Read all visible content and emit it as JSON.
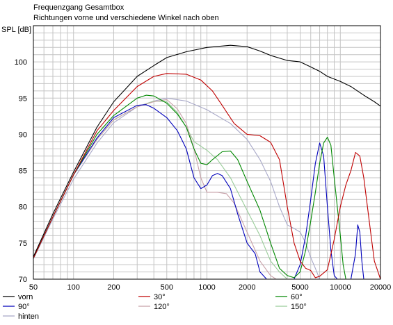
{
  "chart_data": {
    "type": "line",
    "title": "Frequenzgang Gesamtbox",
    "subtitle": "Richtungen vorne und verschiedene Winkel nach oben",
    "xlabel": "",
    "ylabel": "SPL [dB]",
    "x_scale": "log",
    "xlim": [
      50,
      20000
    ],
    "ylim": [
      70,
      105
    ],
    "grid": true,
    "x_ticks": [
      50,
      100,
      200,
      500,
      1000,
      2000,
      5000,
      10000,
      20000
    ],
    "x_tick_labels": [
      "50",
      "100",
      "200",
      "500",
      "1000",
      "2000",
      "5000",
      "10000",
      "20000"
    ],
    "y_ticks": [
      70,
      75,
      80,
      85,
      90,
      95,
      100
    ],
    "y_tick_labels": [
      "70",
      "75",
      "80",
      "85",
      "90",
      "95",
      "100"
    ],
    "legend_position": "bottom",
    "series": [
      {
        "name": "vorn",
        "color": "#000000",
        "points": [
          [
            50,
            73.1
          ],
          [
            70,
            79
          ],
          [
            100,
            84.8
          ],
          [
            150,
            91
          ],
          [
            200,
            94.5
          ],
          [
            300,
            98
          ],
          [
            400,
            99.5
          ],
          [
            500,
            100.6
          ],
          [
            700,
            101.4
          ],
          [
            1000,
            102
          ],
          [
            1500,
            102.3
          ],
          [
            2000,
            102.1
          ],
          [
            2500,
            101.5
          ],
          [
            3000,
            100.9
          ],
          [
            4000,
            100.2
          ],
          [
            5000,
            100
          ],
          [
            6000,
            99.3
          ],
          [
            7000,
            98.7
          ],
          [
            8000,
            98
          ],
          [
            10000,
            97.3
          ],
          [
            12000,
            96.6
          ],
          [
            15000,
            95.4
          ],
          [
            18000,
            94.5
          ],
          [
            20000,
            93.9
          ]
        ]
      },
      {
        "name": "30°",
        "color": "#c00000",
        "points": [
          [
            50,
            72.9
          ],
          [
            70,
            78.6
          ],
          [
            100,
            84.4
          ],
          [
            150,
            90.5
          ],
          [
            200,
            93.3
          ],
          [
            300,
            96.6
          ],
          [
            400,
            98
          ],
          [
            500,
            98.4
          ],
          [
            700,
            98.3
          ],
          [
            900,
            97.5
          ],
          [
            1100,
            96
          ],
          [
            1300,
            94
          ],
          [
            1600,
            91.5
          ],
          [
            2000,
            90
          ],
          [
            2500,
            89.8
          ],
          [
            3000,
            88.9
          ],
          [
            3500,
            86.5
          ],
          [
            4000,
            80
          ],
          [
            4500,
            75
          ],
          [
            5000,
            72.5
          ],
          [
            5500,
            71.5
          ],
          [
            6000,
            71.2
          ],
          [
            6500,
            70.2
          ],
          [
            7000,
            70.4
          ],
          [
            8000,
            71.3
          ],
          [
            9000,
            75.5
          ],
          [
            10000,
            80
          ],
          [
            11000,
            83
          ],
          [
            12000,
            85
          ],
          [
            13000,
            87.5
          ],
          [
            14000,
            87
          ],
          [
            15000,
            84
          ],
          [
            17000,
            76
          ],
          [
            18000,
            72.5
          ],
          [
            20000,
            70
          ]
        ]
      },
      {
        "name": "60°",
        "color": "#008800",
        "points": [
          [
            50,
            72.9
          ],
          [
            70,
            78.6
          ],
          [
            100,
            84.4
          ],
          [
            150,
            90
          ],
          [
            200,
            92.6
          ],
          [
            300,
            95
          ],
          [
            350,
            95.4
          ],
          [
            400,
            95.3
          ],
          [
            500,
            94.3
          ],
          [
            600,
            92.8
          ],
          [
            700,
            91
          ],
          [
            800,
            88
          ],
          [
            900,
            86
          ],
          [
            1000,
            85.8
          ],
          [
            1100,
            86.5
          ],
          [
            1300,
            87.6
          ],
          [
            1500,
            87.7
          ],
          [
            1700,
            86.5
          ],
          [
            2000,
            83.5
          ],
          [
            2500,
            79.5
          ],
          [
            3000,
            75
          ],
          [
            3500,
            71.5
          ],
          [
            4000,
            70.5
          ],
          [
            4500,
            70.2
          ],
          [
            5000,
            71
          ],
          [
            5500,
            74
          ],
          [
            6000,
            78
          ],
          [
            6500,
            82
          ],
          [
            7000,
            86
          ],
          [
            7500,
            88.8
          ],
          [
            8000,
            89.6
          ],
          [
            8500,
            88.5
          ],
          [
            9000,
            84
          ],
          [
            10000,
            76
          ],
          [
            10500,
            72
          ],
          [
            11000,
            70
          ]
        ]
      },
      {
        "name": "90°",
        "color": "#0000bb",
        "points": [
          [
            50,
            72.9
          ],
          [
            70,
            78.6
          ],
          [
            100,
            84.4
          ],
          [
            150,
            89.5
          ],
          [
            200,
            92.3
          ],
          [
            300,
            94
          ],
          [
            350,
            94.1
          ],
          [
            400,
            93.6
          ],
          [
            500,
            92.3
          ],
          [
            600,
            90.5
          ],
          [
            700,
            88
          ],
          [
            800,
            84
          ],
          [
            900,
            82.5
          ],
          [
            1000,
            83
          ],
          [
            1100,
            84.3
          ],
          [
            1200,
            84.6
          ],
          [
            1300,
            84.3
          ],
          [
            1500,
            82.5
          ],
          [
            1700,
            79
          ],
          [
            2000,
            75
          ],
          [
            2300,
            73.5
          ],
          [
            2500,
            71
          ],
          [
            2800,
            70
          ],
          [
            4500,
            70
          ],
          [
            5000,
            72
          ],
          [
            5500,
            76
          ],
          [
            6000,
            81
          ],
          [
            6500,
            86
          ],
          [
            7000,
            88.8
          ],
          [
            7500,
            87
          ],
          [
            8000,
            80
          ],
          [
            8500,
            74
          ],
          [
            9000,
            70.5
          ],
          [
            9500,
            70
          ],
          [
            12000,
            70
          ],
          [
            13000,
            73.5
          ],
          [
            13500,
            77.5
          ],
          [
            14000,
            76.5
          ],
          [
            14500,
            72.5
          ],
          [
            15000,
            70
          ]
        ]
      },
      {
        "name": "120°",
        "color": "#c8a0a8",
        "points": [
          [
            50,
            72.9
          ],
          [
            70,
            78.6
          ],
          [
            100,
            84.4
          ],
          [
            150,
            89.3
          ],
          [
            200,
            92
          ],
          [
            300,
            93.8
          ],
          [
            400,
            94.5
          ],
          [
            500,
            94.8
          ],
          [
            600,
            93.5
          ],
          [
            700,
            91.5
          ],
          [
            800,
            88
          ],
          [
            900,
            84
          ],
          [
            1000,
            82
          ],
          [
            1200,
            82
          ],
          [
            1400,
            81.8
          ],
          [
            1600,
            80.5
          ],
          [
            2000,
            76.5
          ],
          [
            2500,
            72.5
          ],
          [
            3000,
            70.5
          ],
          [
            3300,
            70
          ]
        ]
      },
      {
        "name": "150°",
        "color": "#99cc99",
        "points": [
          [
            50,
            72.9
          ],
          [
            70,
            78.6
          ],
          [
            100,
            84.4
          ],
          [
            150,
            89.3
          ],
          [
            200,
            92
          ],
          [
            300,
            93.8
          ],
          [
            400,
            94.6
          ],
          [
            500,
            94.5
          ],
          [
            600,
            93
          ],
          [
            700,
            91
          ],
          [
            800,
            89
          ],
          [
            1000,
            87.8
          ],
          [
            1200,
            86.5
          ],
          [
            1500,
            84
          ],
          [
            2000,
            79.5
          ],
          [
            2500,
            76
          ],
          [
            3000,
            72.5
          ],
          [
            3500,
            71
          ],
          [
            4000,
            70
          ]
        ]
      },
      {
        "name": "hinten",
        "color": "#a8a8c8",
        "points": [
          [
            50,
            72.8
          ],
          [
            70,
            78.3
          ],
          [
            100,
            83.8
          ],
          [
            150,
            88.8
          ],
          [
            200,
            91.6
          ],
          [
            300,
            93.8
          ],
          [
            400,
            94.6
          ],
          [
            500,
            95
          ],
          [
            700,
            94.6
          ],
          [
            1000,
            93.4
          ],
          [
            1500,
            91.5
          ],
          [
            2000,
            89.3
          ],
          [
            2500,
            86.5
          ],
          [
            3000,
            83.5
          ],
          [
            3500,
            80
          ],
          [
            4000,
            77.5
          ],
          [
            4500,
            77
          ],
          [
            5000,
            76.5
          ],
          [
            5500,
            75
          ],
          [
            6000,
            73
          ],
          [
            6500,
            71.5
          ],
          [
            7000,
            70
          ]
        ]
      }
    ]
  }
}
